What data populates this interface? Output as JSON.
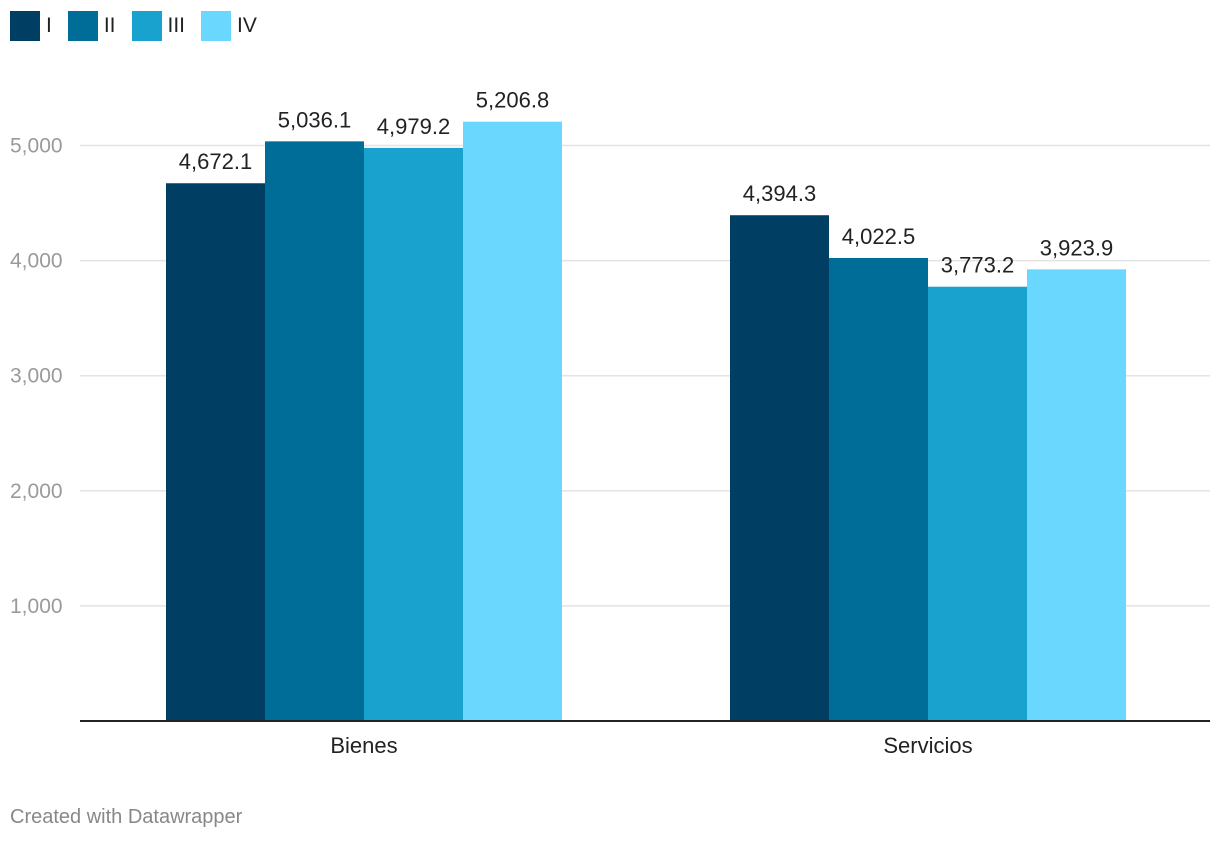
{
  "chart_data": {
    "type": "bar",
    "categories": [
      "Bienes",
      "Servicios"
    ],
    "series": [
      {
        "name": "I",
        "values": [
          4672.1,
          4394.3
        ],
        "labels": [
          "4,672.1",
          "4,394.3"
        ],
        "color": "#003f63"
      },
      {
        "name": "II",
        "values": [
          5036.1,
          4022.5
        ],
        "labels": [
          "5,036.1",
          "4,022.5"
        ],
        "color": "#006d98"
      },
      {
        "name": "III",
        "values": [
          4979.2,
          3773.2
        ],
        "labels": [
          "4,979.2",
          "3,773.2"
        ],
        "color": "#1aa2ce"
      },
      {
        "name": "IV",
        "values": [
          5206.8,
          3923.9
        ],
        "labels": [
          "5,206.8",
          "3,923.9"
        ],
        "color": "#6ad8fe"
      }
    ],
    "yticks": [
      1000,
      2000,
      3000,
      4000,
      5000
    ],
    "ytick_labels": [
      "1,000",
      "2,000",
      "3,000",
      "4,000",
      "5,000"
    ],
    "ylim": [
      0,
      5500
    ],
    "grid": true,
    "legend_position": "top-left"
  },
  "footer": {
    "text": "Created with Datawrapper"
  }
}
